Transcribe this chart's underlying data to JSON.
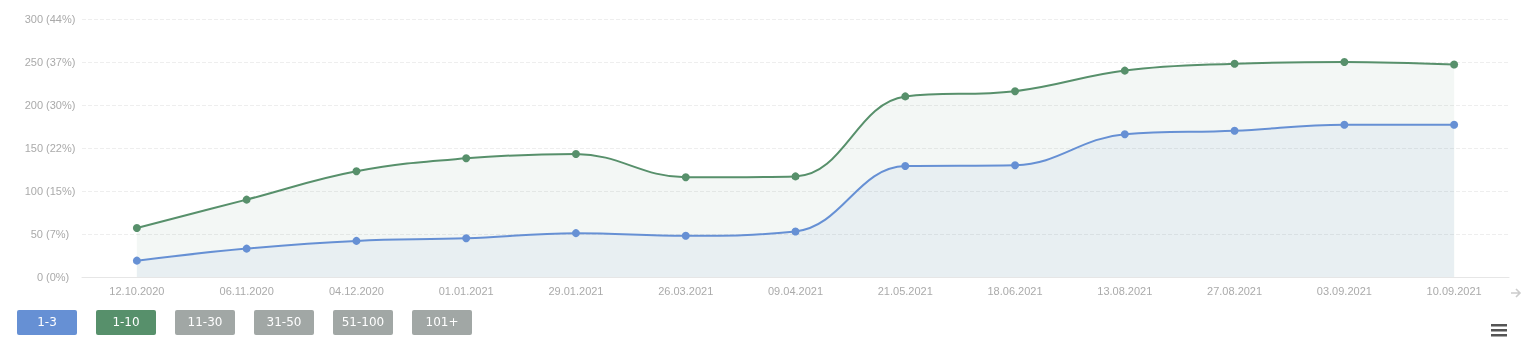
{
  "chart_data": {
    "type": "area",
    "categories": [
      "12.10.2020",
      "06.11.2020",
      "04.12.2020",
      "01.01.2021",
      "29.01.2021",
      "26.03.2021",
      "09.04.2021",
      "21.05.2021",
      "18.06.2021",
      "13.08.2021",
      "27.08.2021",
      "03.09.2021",
      "10.09.2021"
    ],
    "series": [
      {
        "name": "1-3",
        "color": "#6690d4",
        "values": [
          19,
          33,
          42,
          45,
          51,
          48,
          53,
          129,
          130,
          166,
          170,
          177,
          177
        ]
      },
      {
        "name": "1-10",
        "color": "#57906b",
        "values": [
          57,
          90,
          123,
          138,
          143,
          116,
          117,
          210,
          216,
          240,
          248,
          250,
          247
        ]
      },
      {
        "name": "11-30",
        "values": [
          null,
          null,
          null,
          null,
          null,
          null,
          null,
          null,
          null,
          null,
          null,
          null,
          null
        ]
      },
      {
        "name": "31-50",
        "values": [
          null,
          null,
          null,
          null,
          null,
          null,
          null,
          null,
          null,
          null,
          null,
          null,
          null
        ]
      },
      {
        "name": "51-100",
        "values": [
          null,
          null,
          null,
          null,
          null,
          null,
          null,
          null,
          null,
          null,
          null,
          null,
          null
        ]
      },
      {
        "name": "101+",
        "values": [
          null,
          null,
          null,
          null,
          null,
          null,
          null,
          null,
          null,
          null,
          null,
          null,
          null
        ]
      }
    ],
    "ylim": [
      0,
      300
    ],
    "yticks": [
      0,
      50,
      100,
      150,
      200,
      250,
      300
    ],
    "y2lim": [
      0,
      44.4
    ],
    "y2ticks": [
      {
        "value": 0,
        "label": "(0%)"
      },
      {
        "value": 7.4,
        "label": "(7%)"
      },
      {
        "value": 14.8,
        "label": "(15%)"
      },
      {
        "value": 22.2,
        "label": "(22%)"
      },
      {
        "value": 29.6,
        "label": "(30%)"
      },
      {
        "value": 37,
        "label": "(37%)"
      },
      {
        "value": 44.4,
        "label": "(44%)"
      }
    ],
    "grid": "y",
    "legend": "bottom left",
    "marker": "circle",
    "line_style": "solid"
  }
}
